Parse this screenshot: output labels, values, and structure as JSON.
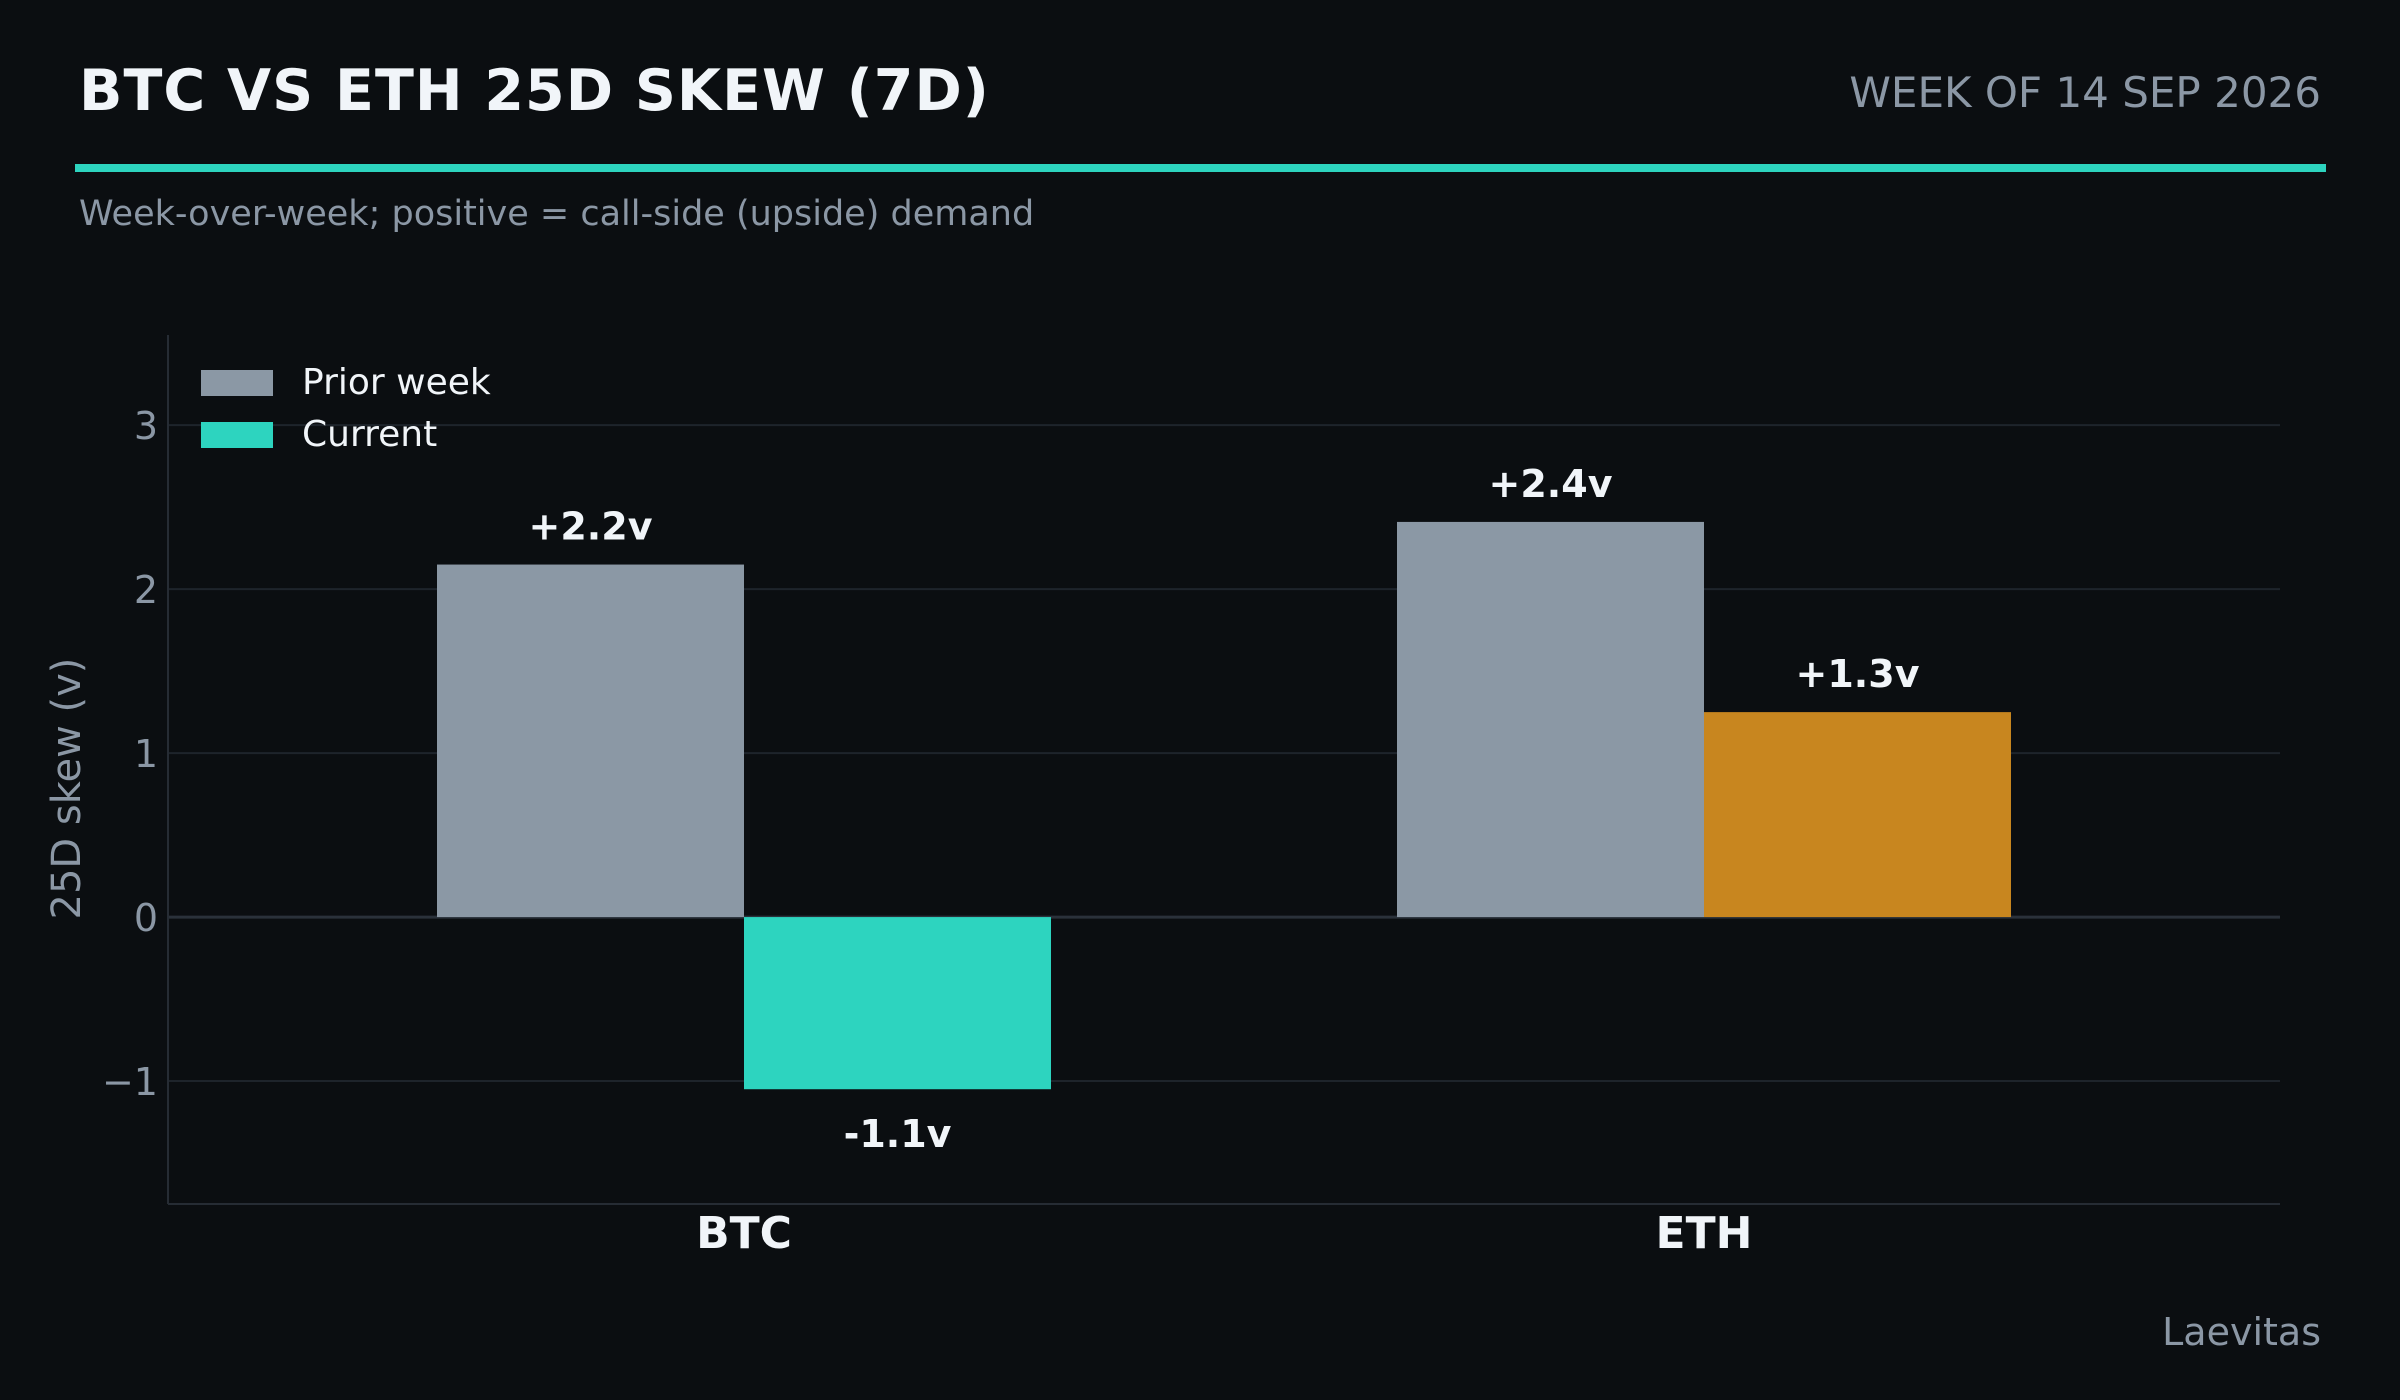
{
  "header": {
    "title": "BTC VS ETH 25D SKEW (7D)",
    "week": "WEEK OF 14 SEP 2026",
    "subtitle": "Week-over-week; positive = call-side (upside) demand"
  },
  "footer": {
    "source": "Laevitas"
  },
  "colors": {
    "background": "#0b0e11",
    "accent": "#2dd4bf",
    "prior": "#8b98a5",
    "current_negative": "#2dd4bf",
    "current_positive": "#c8861f",
    "grid": "#1e242b",
    "text_muted": "#8b97a5",
    "text_main": "#f1f5f9"
  },
  "chart_data": {
    "type": "bar",
    "categories": [
      "BTC",
      "ETH"
    ],
    "series": [
      {
        "name": "Prior week",
        "values": [
          2.15,
          2.41
        ]
      },
      {
        "name": "Current",
        "values": [
          -1.05,
          1.25
        ]
      }
    ],
    "data_labels": [
      [
        "+2.2v",
        "+2.4v"
      ],
      [
        "-1.1v",
        "+1.3v"
      ]
    ],
    "ylabel": "25D skew (v)",
    "ylim": [
      -1.75,
      3.55
    ],
    "yticks": [
      -1,
      0,
      1,
      2,
      3
    ],
    "ytick_labels": [
      "−1",
      "0",
      "1",
      "2",
      "3"
    ],
    "grid": true,
    "legend": "top-left"
  }
}
